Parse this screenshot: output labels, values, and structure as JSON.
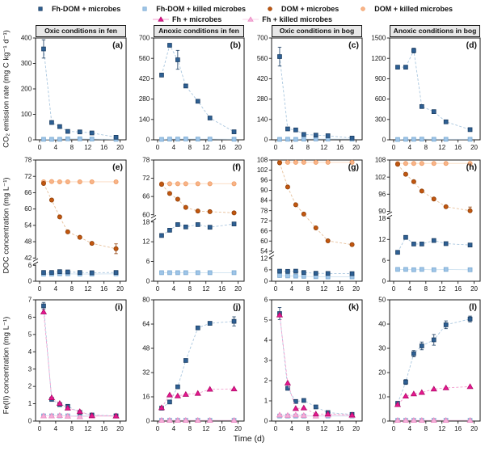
{
  "labels": {
    "y_row1": "CO₂ emission rate (mg C kg⁻¹ d⁻¹)",
    "y_row2": "DOC concentration (mg L⁻¹)",
    "y_row3": "Fe(II) concentration (mg L⁻¹)",
    "x": "Time (d)"
  },
  "legend": {
    "items": [
      {
        "key": "fhdom_microbes",
        "label": "Fh-DOM + microbes",
        "show_line": false
      },
      {
        "key": "fhdom_killed",
        "label": "Fh-DOM + killed microbes",
        "show_line": false
      },
      {
        "key": "dom_microbes",
        "label": "DOM + microbes",
        "show_line": false
      },
      {
        "key": "dom_killed",
        "label": "DOM + killed microbes",
        "show_line": false
      },
      {
        "key": "fh_microbes",
        "label": "Fh + microbes",
        "show_line": true
      },
      {
        "key": "fh_killed",
        "label": "Fh + killed microbes",
        "show_line": true
      }
    ]
  },
  "series_styles": {
    "fhdom_microbes": {
      "marker": "square",
      "fill": "#2e6094",
      "edge": "#1c3e63",
      "line": "#aac7df",
      "dash": true
    },
    "fhdom_killed": {
      "marker": "square",
      "fill": "#9fc5e8",
      "edge": "#79a9d1",
      "line": "#cfe2f1",
      "dash": false
    },
    "dom_microbes": {
      "marker": "circle",
      "fill": "#c2570f",
      "edge": "#8f3f09",
      "line": "#e7c09b",
      "dash": true
    },
    "dom_killed": {
      "marker": "circle",
      "fill": "#f8b489",
      "edge": "#ef9b61",
      "line": "#fbd9be",
      "dash": false
    },
    "fh_microbes": {
      "marker": "triangle",
      "fill": "#e8168f",
      "edge": "#ad0a68",
      "line": "#f3a2d0",
      "dash": true
    },
    "fh_killed": {
      "marker": "triangle",
      "fill": "#f6aed8",
      "edge": "#e989c2",
      "line": "#fad3ea",
      "dash": false
    }
  },
  "chart_data": {
    "type": "line",
    "x": [
      1,
      3,
      5,
      7,
      10,
      13,
      19
    ],
    "x_ticks": [
      0,
      4,
      8,
      12,
      16,
      20
    ],
    "xlim": [
      0,
      20
    ],
    "panels": [
      {
        "id": "a",
        "letter": "(a)",
        "row": 1,
        "title": "Oxic conditions in fen",
        "segments": [
          {
            "min": 0,
            "max": 400,
            "frac": 1,
            "ticks": [
              0,
              100,
              200,
              300,
              400
            ]
          }
        ],
        "series": [
          {
            "key": "fhdom_killed",
            "values": [
              2,
              2,
              2,
              4,
              4,
              3,
              2
            ]
          },
          {
            "key": "fhdom_microbes",
            "values": [
              357,
              68,
              52,
              33,
              31,
              27,
              10
            ],
            "err": [
              36,
              0,
              0,
              0,
              0,
              0,
              6
            ]
          }
        ]
      },
      {
        "id": "b",
        "letter": "(b)",
        "row": 1,
        "title": "Anoxic conditions in fen",
        "segments": [
          {
            "min": 0,
            "max": 700,
            "frac": 1,
            "ticks": [
              0,
              140,
              280,
              420,
              560,
              700
            ]
          }
        ],
        "series": [
          {
            "key": "fhdom_killed",
            "values": [
              3,
              5,
              5,
              6,
              5,
              5,
              4
            ]
          },
          {
            "key": "fhdom_microbes",
            "values": [
              445,
              650,
              550,
              370,
              265,
              150,
              55
            ],
            "err": [
              12,
              12,
              65,
              10,
              8,
              6,
              5
            ]
          }
        ]
      },
      {
        "id": "c",
        "letter": "(c)",
        "row": 1,
        "title": "Oxic conditions in bog",
        "segments": [
          {
            "min": 0,
            "max": 700,
            "frac": 1,
            "ticks": [
              0,
              140,
              280,
              420,
              560,
              700
            ]
          }
        ],
        "series": [
          {
            "key": "fhdom_killed",
            "values": [
              3,
              4,
              3,
              5,
              6,
              6,
              5
            ]
          },
          {
            "key": "fhdom_microbes",
            "values": [
              572,
              75,
              68,
              37,
              32,
              28,
              12
            ],
            "err": [
              65,
              5,
              4,
              3,
              3,
              3,
              4
            ]
          }
        ]
      },
      {
        "id": "d",
        "letter": "(d)",
        "row": 1,
        "title": "Anoxic conditions in bog",
        "segments": [
          {
            "min": 0,
            "max": 1500,
            "frac": 1,
            "ticks": [
              0,
              300,
              600,
              900,
              1200,
              1500
            ]
          }
        ],
        "series": [
          {
            "key": "fhdom_killed",
            "values": [
              5,
              8,
              8,
              10,
              8,
              8,
              8
            ]
          },
          {
            "key": "fhdom_microbes",
            "values": [
              1070,
              1070,
              1315,
              490,
              415,
              265,
              150
            ],
            "err": [
              20,
              20,
              35,
              12,
              10,
              8,
              8
            ]
          }
        ]
      },
      {
        "id": "e",
        "letter": "(e)",
        "row": 2,
        "segments": [
          {
            "min": 0,
            "max": 6,
            "frac": 0.14,
            "ticks": [
              0,
              6
            ]
          },
          {
            "min": 42,
            "max": 78,
            "frac": 0.86,
            "ticks": [
              42,
              48,
              54,
              60,
              66,
              72,
              78
            ]
          }
        ],
        "series": [
          {
            "key": "fhdom_killed",
            "values": [
              2.7,
              2.7,
              2.8,
              2.8,
              2.7,
              2.7,
              2.8
            ]
          },
          {
            "key": "dom_killed",
            "values": [
              70,
              70.1,
              70,
              70,
              70,
              70,
              70
            ]
          },
          {
            "key": "dom_microbes",
            "values": [
              69.4,
              63.3,
              57.1,
              51.6,
              49.6,
              47.4,
              45.4
            ],
            "err": [
              0,
              0,
              0,
              0,
              0,
              0,
              1.8
            ]
          },
          {
            "key": "fhdom_microbes",
            "values": [
              3.3,
              3.3,
              3.6,
              3.5,
              3.3,
              3.2,
              3.3
            ]
          }
        ]
      },
      {
        "id": "f",
        "letter": "(f)",
        "row": 2,
        "segments": [
          {
            "min": 0,
            "max": 18,
            "frac": 0.52,
            "ticks": [
              0,
              6,
              12,
              18
            ]
          },
          {
            "min": 60,
            "max": 78,
            "frac": 0.48,
            "ticks": [
              60,
              66,
              72,
              78
            ]
          }
        ],
        "series": [
          {
            "key": "fhdom_killed",
            "values": [
              2.6,
              2.6,
              2.6,
              2.6,
              2.6,
              2.6,
              2.6
            ]
          },
          {
            "key": "dom_killed",
            "values": [
              70.2,
              70.2,
              70.2,
              70.2,
              70.2,
              70.2,
              70.2
            ]
          },
          {
            "key": "dom_microbes",
            "values": [
              70,
              67,
              65.1,
              62.4,
              61.2,
              61,
              60.6
            ]
          },
          {
            "key": "fhdom_microbes",
            "values": [
              13.9,
              15.5,
              17.2,
              16.5,
              17.2,
              16.4,
              17.4
            ]
          }
        ]
      },
      {
        "id": "g",
        "letter": "(g)",
        "row": 2,
        "segments": [
          {
            "min": 0,
            "max": 12,
            "frac": 0.2,
            "ticks": [
              0,
              6,
              12
            ]
          },
          {
            "min": 54,
            "max": 108,
            "frac": 0.8,
            "ticks": [
              54,
              60,
              66,
              72,
              78,
              84,
              90,
              96,
              102,
              108
            ]
          }
        ],
        "series": [
          {
            "key": "fhdom_killed",
            "values": [
              3,
              2.8,
              2.7,
              2.6,
              2.4,
              2.3,
              2.3
            ]
          },
          {
            "key": "dom_killed",
            "values": [
              106.6,
              106.6,
              106.6,
              106.6,
              106.6,
              106.6,
              106.6
            ]
          },
          {
            "key": "dom_microbes",
            "values": [
              106.3,
              92,
              81.5,
              76,
              67.8,
              60.1,
              57.9
            ]
          },
          {
            "key": "fhdom_microbes",
            "values": [
              5.3,
              5.2,
              5.3,
              4.6,
              4.2,
              4.1,
              4
            ]
          }
        ]
      },
      {
        "id": "h",
        "letter": "(h)",
        "row": 2,
        "segments": [
          {
            "min": 0,
            "max": 18,
            "frac": 0.55,
            "ticks": [
              0,
              6,
              12,
              18
            ]
          },
          {
            "min": 90,
            "max": 108,
            "frac": 0.45,
            "ticks": [
              90,
              96,
              102,
              108
            ]
          }
        ],
        "series": [
          {
            "key": "fhdom_killed",
            "values": [
              3.4,
              3.4,
              3.3,
              3.4,
              3.3,
              3.4,
              3.3
            ]
          },
          {
            "key": "dom_killed",
            "values": [
              106.8,
              106.8,
              106.8,
              106.8,
              106.8,
              106.8,
              106.8
            ]
          },
          {
            "key": "dom_microbes",
            "values": [
              106.5,
              103,
              100.4,
              97.1,
              94.3,
              91.6,
              90.2
            ],
            "err": [
              0,
              0,
              0,
              0,
              0,
              0,
              1.3
            ]
          },
          {
            "key": "fhdom_microbes",
            "values": [
              8.3,
              12.6,
              10.7,
              10.7,
              11.7,
              10.8,
              10.4
            ]
          }
        ]
      },
      {
        "id": "i",
        "letter": "(i)",
        "row": 3,
        "segments": [
          {
            "min": 0,
            "max": 7,
            "frac": 1,
            "ticks": [
              0,
              1,
              2,
              3,
              4,
              5,
              6,
              7
            ]
          }
        ],
        "series": [
          {
            "key": "fhdom_killed",
            "values": [
              0.3,
              0.3,
              0.3,
              0.3,
              0.3,
              0.3,
              0.3
            ]
          },
          {
            "key": "fh_killed",
            "values": [
              0.3,
              0.3,
              0.32,
              0.28,
              0.25,
              0.27,
              0.28
            ]
          },
          {
            "key": "fhdom_microbes",
            "values": [
              6.65,
              1.25,
              0.95,
              0.85,
              0.5,
              0.35,
              0.3
            ],
            "err": [
              0.2,
              0,
              0,
              0,
              0,
              0,
              0
            ]
          },
          {
            "key": "fh_microbes",
            "values": [
              6.3,
              1.35,
              1.02,
              0.75,
              0.55,
              0.32,
              0.3
            ]
          }
        ]
      },
      {
        "id": "j",
        "letter": "(j)",
        "row": 3,
        "segments": [
          {
            "min": 0,
            "max": 80,
            "frac": 1,
            "ticks": [
              0,
              16,
              32,
              48,
              64,
              80
            ]
          }
        ],
        "series": [
          {
            "key": "fhdom_killed",
            "values": [
              0.5,
              0.5,
              0.5,
              0.5,
              0.5,
              0.5,
              0.5
            ]
          },
          {
            "key": "fh_killed",
            "values": [
              0.5,
              0.5,
              0.5,
              0.5,
              0.5,
              0.5,
              0.5
            ]
          },
          {
            "key": "fhdom_microbes",
            "values": [
              8.5,
              12.6,
              22.6,
              40,
              61.5,
              64.5,
              65.8
            ],
            "err": [
              0,
              0,
              0,
              0,
              0,
              0,
              3
            ]
          },
          {
            "key": "fh_microbes",
            "values": [
              8.8,
              17.2,
              16.6,
              17.6,
              18.3,
              21,
              21.2
            ]
          }
        ]
      },
      {
        "id": "k",
        "letter": "(k)",
        "row": 3,
        "segments": [
          {
            "min": 0,
            "max": 6,
            "frac": 1,
            "ticks": [
              0,
              1,
              2,
              3,
              4,
              5,
              6
            ]
          }
        ],
        "series": [
          {
            "key": "fhdom_killed",
            "values": [
              0.25,
              0.25,
              0.25,
              0.25,
              0.25,
              0.25,
              0.25
            ]
          },
          {
            "key": "fh_killed",
            "values": [
              0.3,
              0.28,
              0.3,
              0.28,
              0.25,
              0.3,
              0.27
            ]
          },
          {
            "key": "fhdom_microbes",
            "values": [
              5.32,
              1.62,
              0.97,
              1.02,
              0.7,
              0.42,
              0.33
            ],
            "err": [
              0.3,
              0,
              0,
              0,
              0,
              0,
              0
            ]
          },
          {
            "key": "fh_microbes",
            "values": [
              5.25,
              1.88,
              0.62,
              0.65,
              0.35,
              0.35,
              0.3
            ]
          }
        ]
      },
      {
        "id": "l",
        "letter": "(l)",
        "row": 3,
        "segments": [
          {
            "min": 0,
            "max": 50,
            "frac": 1,
            "ticks": [
              0,
              10,
              20,
              30,
              40,
              50
            ]
          }
        ],
        "series": [
          {
            "key": "fhdom_killed",
            "values": [
              0.3,
              0.3,
              0.3,
              0.3,
              0.3,
              0.3,
              0.3
            ]
          },
          {
            "key": "fh_killed",
            "values": [
              0.3,
              0.3,
              0.3,
              0.3,
              0.3,
              0.3,
              0.3
            ]
          },
          {
            "key": "fhdom_microbes",
            "values": [
              7.3,
              16.1,
              27.8,
              31,
              33.5,
              39.7,
              42.1
            ],
            "err": [
              0.8,
              1,
              1.3,
              1.6,
              2.2,
              1.6,
              1.2
            ]
          },
          {
            "key": "fh_microbes",
            "values": [
              6.8,
              10.3,
              11.2,
              11.8,
              13.2,
              13.7,
              14.2
            ]
          }
        ]
      }
    ]
  }
}
